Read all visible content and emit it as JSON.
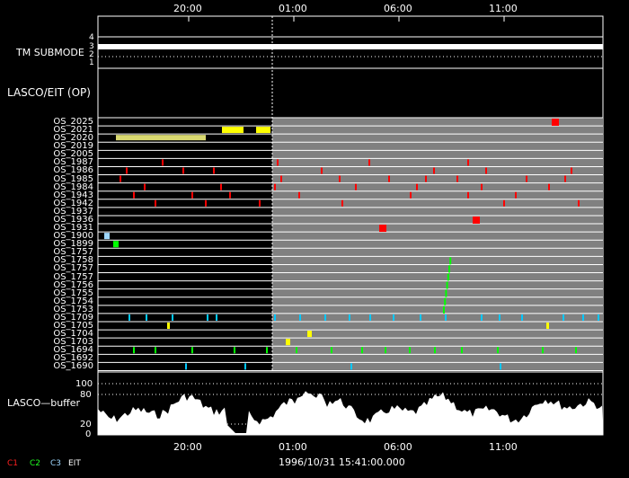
{
  "time_axis": {
    "ticks": [
      "20:00",
      "01:00",
      "06:00",
      "11:00"
    ]
  },
  "tm_submode": {
    "label": "TM SUBMODE",
    "levels": [
      "4",
      "3",
      "2",
      "1"
    ]
  },
  "section_title": "LASCO/EIT (OP)",
  "os_rows": [
    "OS_2025",
    "OS_2021",
    "OS_2020",
    "OS_2019",
    "OS_2005",
    "OS_1987",
    "OS_1986",
    "OS_1985",
    "OS_1984",
    "OS_1943",
    "OS_1942",
    "OS_1937",
    "OS_1936",
    "OS_1931",
    "OS_1900",
    "OS_1899",
    "OS_1757",
    "OS_1758",
    "OS_1757",
    "OS_1757",
    "OS_1756",
    "OS_1755",
    "OS_1754",
    "OS_1753",
    "OS_1709",
    "OS_1705",
    "OS_1704",
    "OS_1703",
    "OS_1694",
    "OS_1692",
    "OS_1690"
  ],
  "buffer": {
    "label": "LASCO—buffer",
    "y_ticks": [
      "100",
      "80",
      "20",
      "0"
    ]
  },
  "footer": {
    "timestamp": "1996/10/31 15:41:00.000",
    "legend": [
      {
        "text": "C1",
        "color": "#ff2020"
      },
      {
        "text": "C2",
        "color": "#20ff20"
      },
      {
        "text": "C3",
        "color": "#9fd8ff"
      },
      {
        "text": "EIT",
        "color": "#ffffff"
      }
    ]
  },
  "colors": {
    "background": "#000000",
    "shaded": "#808080",
    "row_line": "#ffffff",
    "c1": "#ff0000",
    "c2": "#00ff00",
    "c3": "#00c8ff",
    "eit": "#ffff00"
  }
}
